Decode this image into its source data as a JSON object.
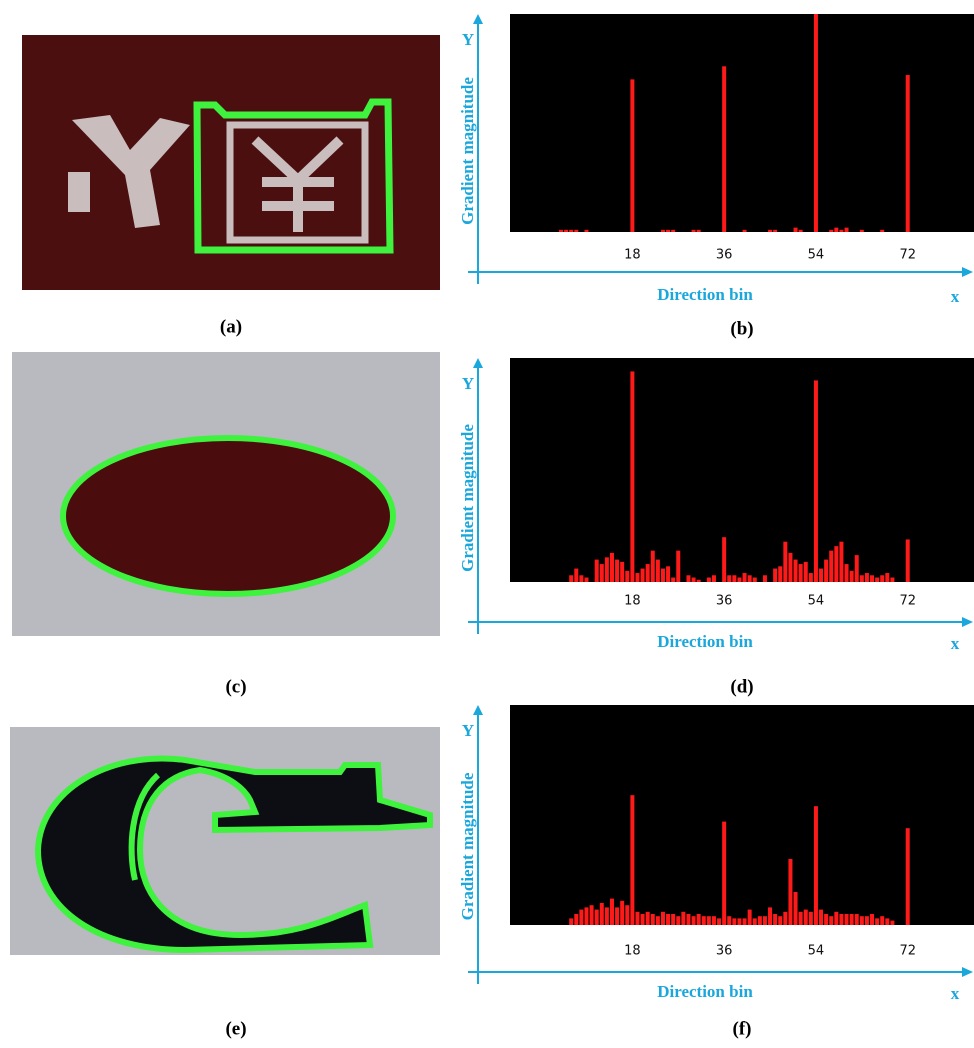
{
  "images": [
    {
      "caption": "(a)"
    },
    {
      "caption": "(c)"
    },
    {
      "caption": "(e)"
    }
  ],
  "chart_data": [
    {
      "type": "bar",
      "caption": "(b)",
      "ylabel": "Gradient magnitude",
      "xlabel": "Direction bin",
      "y_axis_name": "Y",
      "x_axis_name": "x",
      "color": "#ff1a1a",
      "xlim": [
        -6,
        85
      ],
      "ylim": [
        0,
        100
      ],
      "xticks": [
        18,
        36,
        54,
        72
      ],
      "x": [
        4,
        5,
        6,
        7,
        9,
        18,
        24,
        25,
        26,
        30,
        31,
        36,
        40,
        45,
        46,
        50,
        51,
        54,
        57,
        58,
        59,
        60,
        63,
        67,
        72
      ],
      "values": [
        1,
        1,
        1,
        1,
        1,
        70,
        1,
        1,
        1,
        1,
        1,
        76,
        1,
        1,
        1,
        2,
        1,
        100,
        1,
        2,
        1,
        2,
        1,
        1,
        72
      ]
    },
    {
      "type": "bar",
      "caption": "(d)",
      "ylabel": "Gradient magnitude",
      "xlabel": "Direction bin",
      "y_axis_name": "Y",
      "x_axis_name": "x",
      "color": "#ff1a1a",
      "xlim": [
        -6,
        85
      ],
      "ylim": [
        0,
        100
      ],
      "xticks": [
        18,
        36,
        54,
        72
      ],
      "x": [
        6,
        7,
        8,
        9,
        11,
        12,
        13,
        14,
        15,
        16,
        17,
        18,
        19,
        20,
        21,
        22,
        23,
        24,
        25,
        26,
        27,
        29,
        30,
        31,
        33,
        34,
        36,
        37,
        38,
        39,
        40,
        41,
        42,
        44,
        46,
        47,
        48,
        49,
        50,
        51,
        52,
        53,
        54,
        55,
        56,
        57,
        58,
        59,
        60,
        61,
        62,
        63,
        64,
        65,
        66,
        67,
        68,
        69,
        72
      ],
      "values": [
        3,
        6,
        3,
        2,
        10,
        8,
        11,
        13,
        10,
        9,
        5,
        94,
        4,
        6,
        8,
        14,
        10,
        6,
        7,
        2,
        14,
        3,
        2,
        1,
        2,
        3,
        20,
        3,
        3,
        2,
        4,
        3,
        2,
        3,
        6,
        7,
        18,
        13,
        10,
        8,
        9,
        4,
        90,
        6,
        10,
        14,
        16,
        18,
        8,
        5,
        12,
        3,
        4,
        3,
        2,
        3,
        4,
        2,
        19
      ]
    },
    {
      "type": "bar",
      "caption": "(f)",
      "ylabel": "Gradient magnitude",
      "xlabel": "Direction bin",
      "y_axis_name": "Y",
      "x_axis_name": "x",
      "color": "#ff1a1a",
      "xlim": [
        -6,
        85
      ],
      "ylim": [
        0,
        100
      ],
      "xticks": [
        18,
        36,
        54,
        72
      ],
      "x": [
        6,
        7,
        8,
        9,
        10,
        11,
        12,
        13,
        14,
        15,
        16,
        17,
        18,
        19,
        20,
        21,
        22,
        23,
        24,
        25,
        26,
        27,
        28,
        29,
        30,
        31,
        32,
        33,
        34,
        35,
        36,
        37,
        38,
        39,
        40,
        41,
        42,
        43,
        44,
        45,
        46,
        47,
        48,
        49,
        50,
        51,
        52,
        53,
        54,
        55,
        56,
        57,
        58,
        59,
        60,
        61,
        62,
        63,
        64,
        65,
        66,
        67,
        68,
        69,
        72
      ],
      "values": [
        3,
        5,
        7,
        8,
        9,
        7,
        10,
        8,
        12,
        8,
        11,
        9,
        59,
        6,
        5,
        6,
        5,
        4,
        6,
        5,
        5,
        4,
        6,
        5,
        4,
        5,
        4,
        4,
        4,
        3,
        47,
        4,
        3,
        3,
        3,
        7,
        3,
        4,
        4,
        8,
        5,
        4,
        6,
        30,
        15,
        6,
        7,
        6,
        54,
        7,
        5,
        4,
        6,
        5,
        5,
        5,
        5,
        4,
        4,
        5,
        3,
        4,
        3,
        2,
        44
      ]
    }
  ]
}
